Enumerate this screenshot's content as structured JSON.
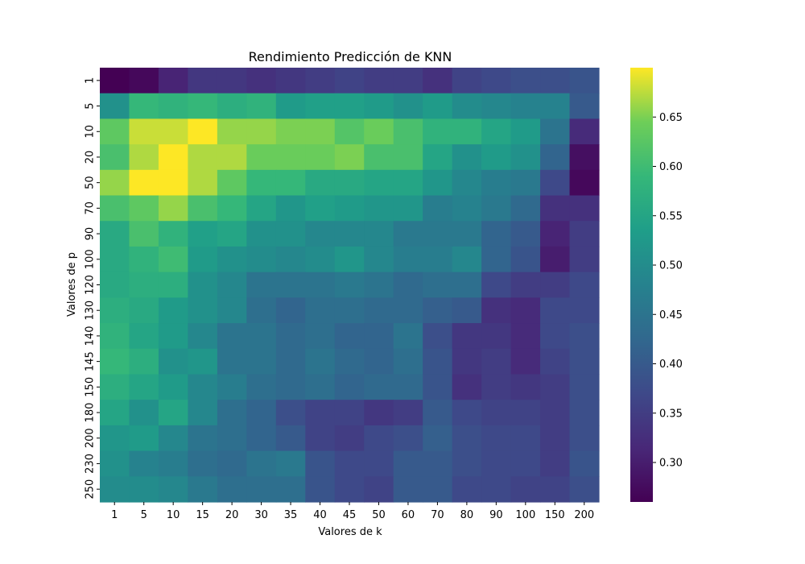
{
  "chart_data": {
    "type": "heatmap",
    "title": "Rendimiento Predicción de KNN",
    "xlabel": "Valores de k",
    "ylabel": "Valores de p",
    "x": [
      "1",
      "5",
      "10",
      "15",
      "20",
      "30",
      "35",
      "40",
      "45",
      "50",
      "60",
      "70",
      "80",
      "90",
      "100",
      "150",
      "200"
    ],
    "y": [
      "1",
      "5",
      "10",
      "20",
      "50",
      "70",
      "90",
      "100",
      "120",
      "130",
      "140",
      "145",
      "150",
      "180",
      "200",
      "230",
      "250"
    ],
    "values": [
      [
        0.26,
        0.27,
        0.31,
        0.34,
        0.34,
        0.33,
        0.34,
        0.35,
        0.36,
        0.35,
        0.35,
        0.33,
        0.36,
        0.37,
        0.38,
        0.38,
        0.39
      ],
      [
        0.51,
        0.59,
        0.58,
        0.59,
        0.57,
        0.58,
        0.53,
        0.54,
        0.54,
        0.53,
        0.51,
        0.53,
        0.5,
        0.49,
        0.48,
        0.48,
        0.4
      ],
      [
        0.63,
        0.68,
        0.68,
        0.7,
        0.66,
        0.66,
        0.65,
        0.65,
        0.62,
        0.64,
        0.61,
        0.58,
        0.58,
        0.55,
        0.53,
        0.45,
        0.32
      ],
      [
        0.61,
        0.67,
        0.7,
        0.67,
        0.67,
        0.64,
        0.64,
        0.64,
        0.65,
        0.61,
        0.61,
        0.55,
        0.51,
        0.53,
        0.51,
        0.42,
        0.28
      ],
      [
        0.66,
        0.7,
        0.7,
        0.67,
        0.63,
        0.59,
        0.59,
        0.56,
        0.56,
        0.55,
        0.55,
        0.52,
        0.49,
        0.47,
        0.46,
        0.37,
        0.27
      ],
      [
        0.61,
        0.63,
        0.66,
        0.61,
        0.59,
        0.55,
        0.52,
        0.54,
        0.53,
        0.52,
        0.52,
        0.47,
        0.48,
        0.46,
        0.43,
        0.33,
        0.33
      ],
      [
        0.56,
        0.61,
        0.58,
        0.54,
        0.55,
        0.51,
        0.51,
        0.49,
        0.49,
        0.49,
        0.46,
        0.46,
        0.46,
        0.42,
        0.4,
        0.31,
        0.35
      ],
      [
        0.56,
        0.58,
        0.6,
        0.53,
        0.51,
        0.5,
        0.49,
        0.5,
        0.52,
        0.49,
        0.47,
        0.47,
        0.49,
        0.42,
        0.39,
        0.3,
        0.35
      ],
      [
        0.56,
        0.57,
        0.57,
        0.51,
        0.49,
        0.45,
        0.45,
        0.45,
        0.46,
        0.45,
        0.43,
        0.44,
        0.44,
        0.37,
        0.35,
        0.35,
        0.37
      ],
      [
        0.57,
        0.56,
        0.53,
        0.51,
        0.49,
        0.44,
        0.42,
        0.44,
        0.44,
        0.43,
        0.43,
        0.41,
        0.4,
        0.33,
        0.32,
        0.37,
        0.37
      ],
      [
        0.58,
        0.55,
        0.53,
        0.49,
        0.45,
        0.45,
        0.43,
        0.44,
        0.42,
        0.42,
        0.45,
        0.38,
        0.34,
        0.34,
        0.32,
        0.37,
        0.38
      ],
      [
        0.59,
        0.57,
        0.51,
        0.52,
        0.45,
        0.45,
        0.43,
        0.45,
        0.43,
        0.42,
        0.44,
        0.39,
        0.34,
        0.35,
        0.32,
        0.36,
        0.38
      ],
      [
        0.57,
        0.55,
        0.53,
        0.49,
        0.47,
        0.44,
        0.43,
        0.44,
        0.42,
        0.43,
        0.43,
        0.39,
        0.33,
        0.35,
        0.34,
        0.35,
        0.38
      ],
      [
        0.55,
        0.51,
        0.55,
        0.49,
        0.44,
        0.42,
        0.38,
        0.36,
        0.36,
        0.34,
        0.35,
        0.4,
        0.37,
        0.36,
        0.36,
        0.35,
        0.38
      ],
      [
        0.52,
        0.53,
        0.49,
        0.45,
        0.44,
        0.42,
        0.4,
        0.36,
        0.35,
        0.37,
        0.38,
        0.41,
        0.38,
        0.37,
        0.37,
        0.35,
        0.38
      ],
      [
        0.51,
        0.48,
        0.47,
        0.44,
        0.43,
        0.45,
        0.46,
        0.39,
        0.37,
        0.37,
        0.4,
        0.4,
        0.38,
        0.37,
        0.37,
        0.35,
        0.39
      ],
      [
        0.5,
        0.5,
        0.49,
        0.46,
        0.44,
        0.44,
        0.44,
        0.39,
        0.37,
        0.36,
        0.4,
        0.4,
        0.37,
        0.37,
        0.36,
        0.36,
        0.38
      ]
    ],
    "colorscale": "viridis",
    "vmin": 0.26,
    "vmax": 0.7,
    "colorbar_ticks": [
      "0.30",
      "0.35",
      "0.40",
      "0.45",
      "0.50",
      "0.55",
      "0.60",
      "0.65"
    ],
    "legend": "colorbar-right",
    "grid": false
  }
}
